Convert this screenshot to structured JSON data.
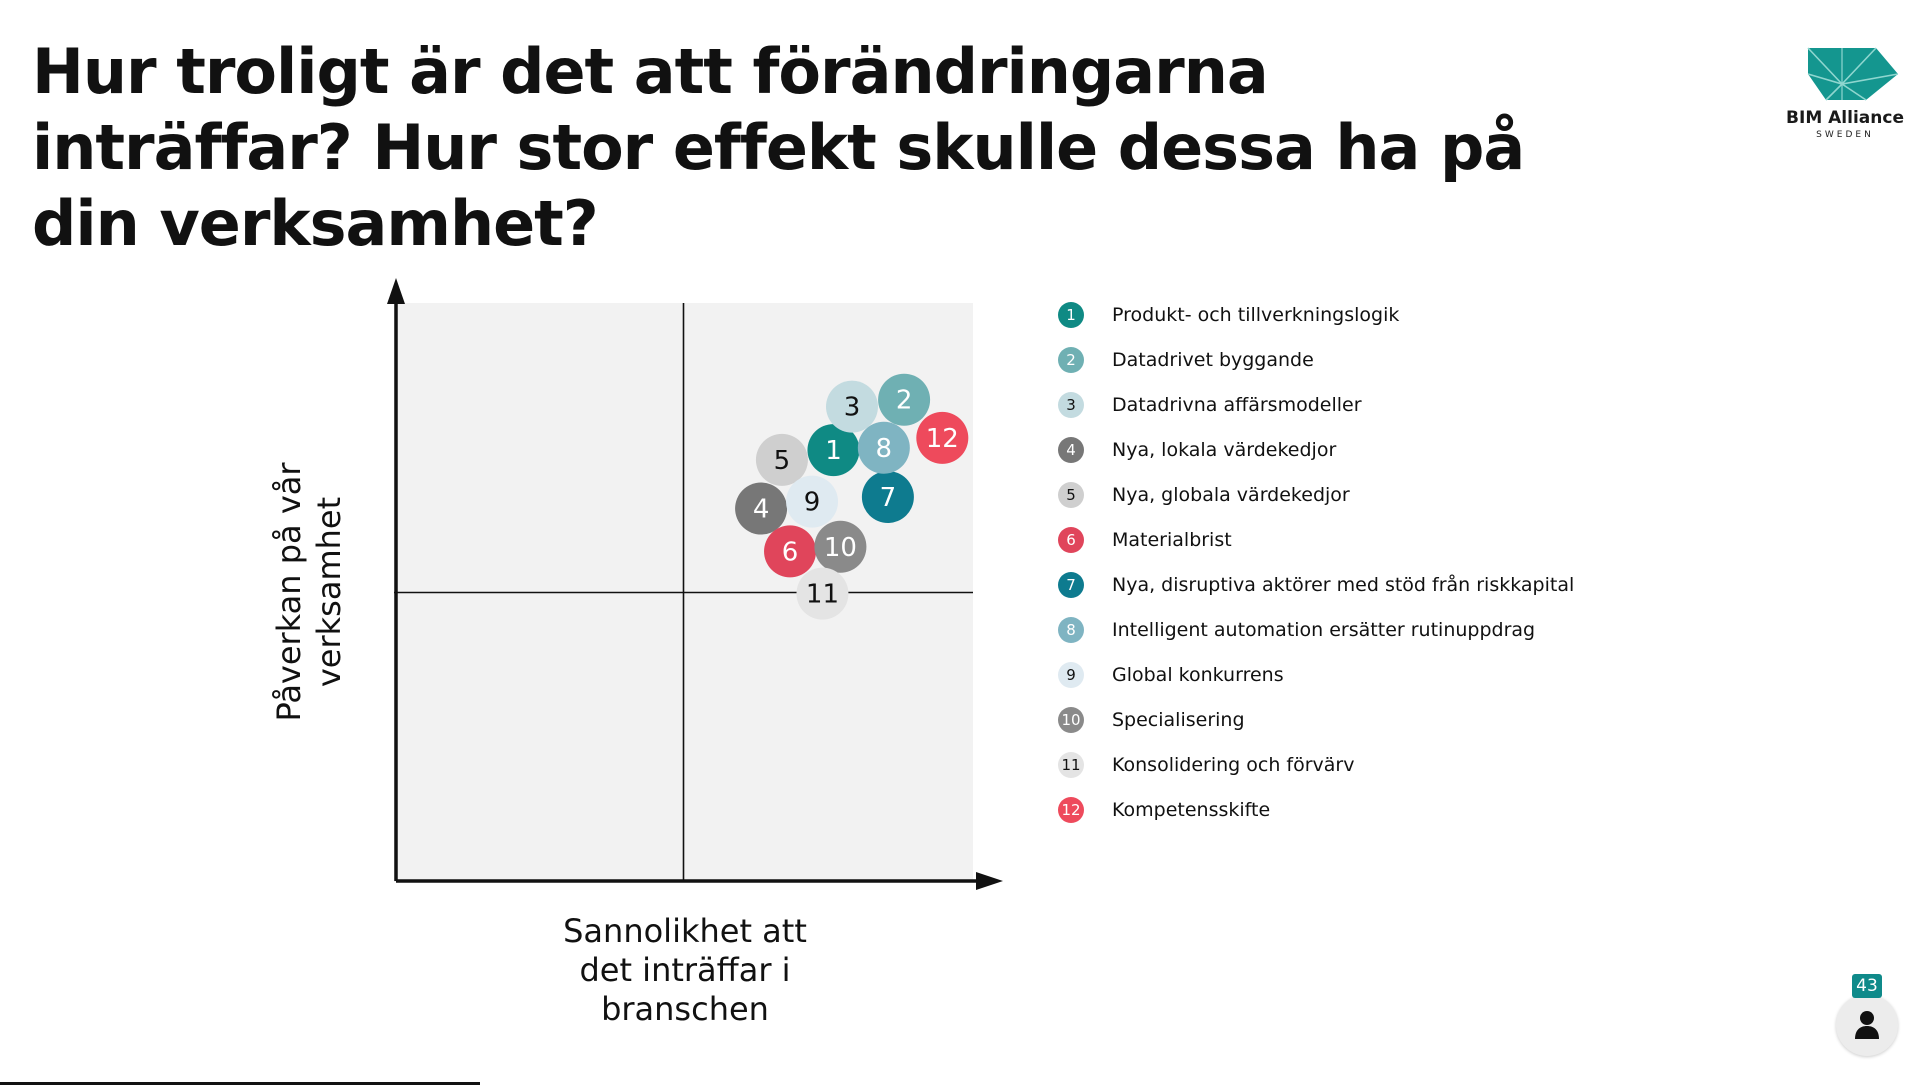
{
  "slide": {
    "title": "Hur troligt är det att förändringarna inträffar? Hur stor effekt skulle dessa ha på din verksamhet?",
    "page_number": "43",
    "logo": {
      "name": "BIM Alliance",
      "sub": "SWEDEN",
      "color": "#14968f"
    },
    "icons": {
      "user": "user-icon",
      "logo": "bim-alliance-logo-icon"
    }
  },
  "chart_data": {
    "type": "scatter",
    "xlabel": [
      "Sannolikhet att",
      "det inträffar i",
      "branschen"
    ],
    "ylabel": [
      "Påverkan på vår",
      "verksamhet"
    ],
    "xlim": [
      0,
      100
    ],
    "ylim": [
      0,
      100
    ],
    "grid": false,
    "quadrant_dividers": {
      "x": 50,
      "y": 50
    },
    "legend_position": "right",
    "points": [
      {
        "id": "1",
        "label": "Produkt- och tillverkningslogik",
        "x": 75.9,
        "y": 74.6,
        "color": "#0f8a84",
        "text_color": "#ffffff"
      },
      {
        "id": "2",
        "label": "Datadrivet byggande",
        "x": 88.1,
        "y": 83.3,
        "color": "#6fb0b3",
        "text_color": "#ffffff"
      },
      {
        "id": "3",
        "label": "Datadrivna affärsmodeller",
        "x": 79.1,
        "y": 82.1,
        "color": "#c3dbe0",
        "text_color": "#111111"
      },
      {
        "id": "4",
        "label": "Nya, lokala värdekedjor",
        "x": 63.4,
        "y": 64.5,
        "color": "#777777",
        "text_color": "#ffffff"
      },
      {
        "id": "5",
        "label": "Nya, globala värdekedjor",
        "x": 67.0,
        "y": 72.9,
        "color": "#cfcfcf",
        "text_color": "#111111"
      },
      {
        "id": "6",
        "label": "Materialbrist",
        "x": 68.4,
        "y": 57.1,
        "color": "#e0455b",
        "text_color": "#ffffff"
      },
      {
        "id": "7",
        "label": "Nya, disruptiva aktörer med stöd från riskkapital",
        "x": 85.3,
        "y": 66.5,
        "color": "#0e7b8f",
        "text_color": "#ffffff"
      },
      {
        "id": "8",
        "label": "Intelligent automation ersätter rutinuppdrag",
        "x": 84.6,
        "y": 75.0,
        "color": "#7fb4c2",
        "text_color": "#ffffff"
      },
      {
        "id": "9",
        "label": "Global konkurrens",
        "x": 72.2,
        "y": 65.7,
        "color": "#dfeaf1",
        "text_color": "#111111"
      },
      {
        "id": "10",
        "label": "Specialisering",
        "x": 77.1,
        "y": 57.9,
        "color": "#8a8a8a",
        "text_color": "#ffffff"
      },
      {
        "id": "11",
        "label": "Konsolidering och förvärv",
        "x": 74.0,
        "y": 49.8,
        "color": "#e4e4e4",
        "text_color": "#111111"
      },
      {
        "id": "12",
        "label": "Kompetensskifte",
        "x": 94.7,
        "y": 76.7,
        "color": "#ee4a5c",
        "text_color": "#ffffff"
      }
    ]
  }
}
